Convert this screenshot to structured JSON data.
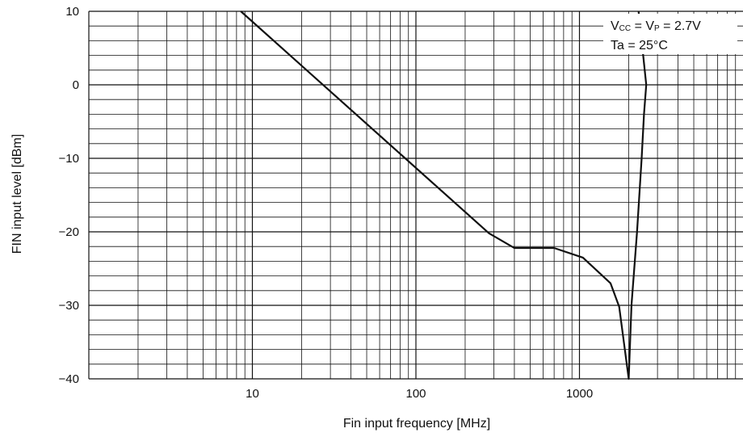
{
  "chart_data": {
    "type": "line",
    "xlabel": "Fin input frequency [MHz]",
    "ylabel": "FIN input level [dBm]",
    "x_scale": "log",
    "xlim": [
      1,
      10000
    ],
    "ylim": [
      -40,
      10
    ],
    "grid": true,
    "x_ticks": [
      {
        "value": 10,
        "label": "10"
      },
      {
        "value": 100,
        "label": "100"
      },
      {
        "value": 1000,
        "label": "1000"
      }
    ],
    "y_ticks": [
      {
        "value": 10,
        "label": "10"
      },
      {
        "value": 0,
        "label": "0"
      },
      {
        "value": -10,
        "label": "−10"
      },
      {
        "value": -20,
        "label": "−20"
      },
      {
        "value": -30,
        "label": "−30"
      },
      {
        "value": -40,
        "label": "−40"
      }
    ],
    "annotation": {
      "line1": {
        "v1": "V",
        "v1_sub": "CC",
        "eq1": " = V",
        "v2_sub": "P",
        "eq2": " = 2.7V"
      },
      "line2": "Ta = 25°C"
    },
    "series": [
      {
        "color": "#111111",
        "points": [
          {
            "x": 8.5,
            "y": 10
          },
          {
            "x": 280,
            "y": -20.2
          },
          {
            "x": 400,
            "y": -22.2
          },
          {
            "x": 700,
            "y": -22.2
          },
          {
            "x": 1050,
            "y": -23.5
          },
          {
            "x": 1550,
            "y": -27
          },
          {
            "x": 1750,
            "y": -30.2
          },
          {
            "x": 2000,
            "y": -40
          },
          {
            "x": 2080,
            "y": -30
          },
          {
            "x": 2250,
            "y": -20
          },
          {
            "x": 2400,
            "y": -10
          },
          {
            "x": 2480,
            "y": -4
          },
          {
            "x": 2560,
            "y": 0
          },
          {
            "x": 2300,
            "y": 10
          }
        ]
      }
    ]
  }
}
